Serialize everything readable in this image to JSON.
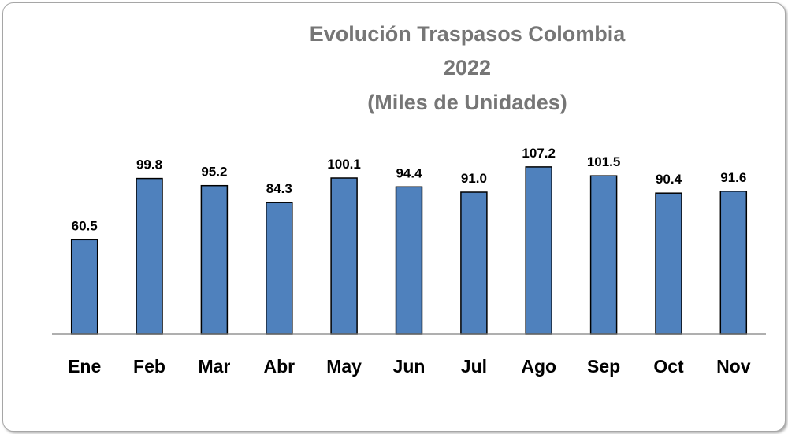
{
  "chart_data": {
    "type": "bar",
    "title_lines": [
      "Evolución Traspasos Colombia",
      "2022",
      "(Miles de Unidades)"
    ],
    "categories": [
      "Ene",
      "Feb",
      "Mar",
      "Abr",
      "May",
      "Jun",
      "Jul",
      "Ago",
      "Sep",
      "Oct",
      "Nov"
    ],
    "values": [
      60.5,
      99.8,
      95.2,
      84.3,
      100.1,
      94.4,
      91.0,
      107.2,
      101.5,
      90.4,
      91.6
    ],
    "data_labels": [
      "60.5",
      "99.8",
      "95.2",
      "84.3",
      "100.1",
      "94.4",
      "91.0",
      "107.2",
      "101.5",
      "90.4",
      "91.6"
    ],
    "ylim": [
      0,
      109.7
    ],
    "grid": false,
    "legend": "none",
    "bar_color": "#4f81bd",
    "bar_border_color": "#000000"
  }
}
